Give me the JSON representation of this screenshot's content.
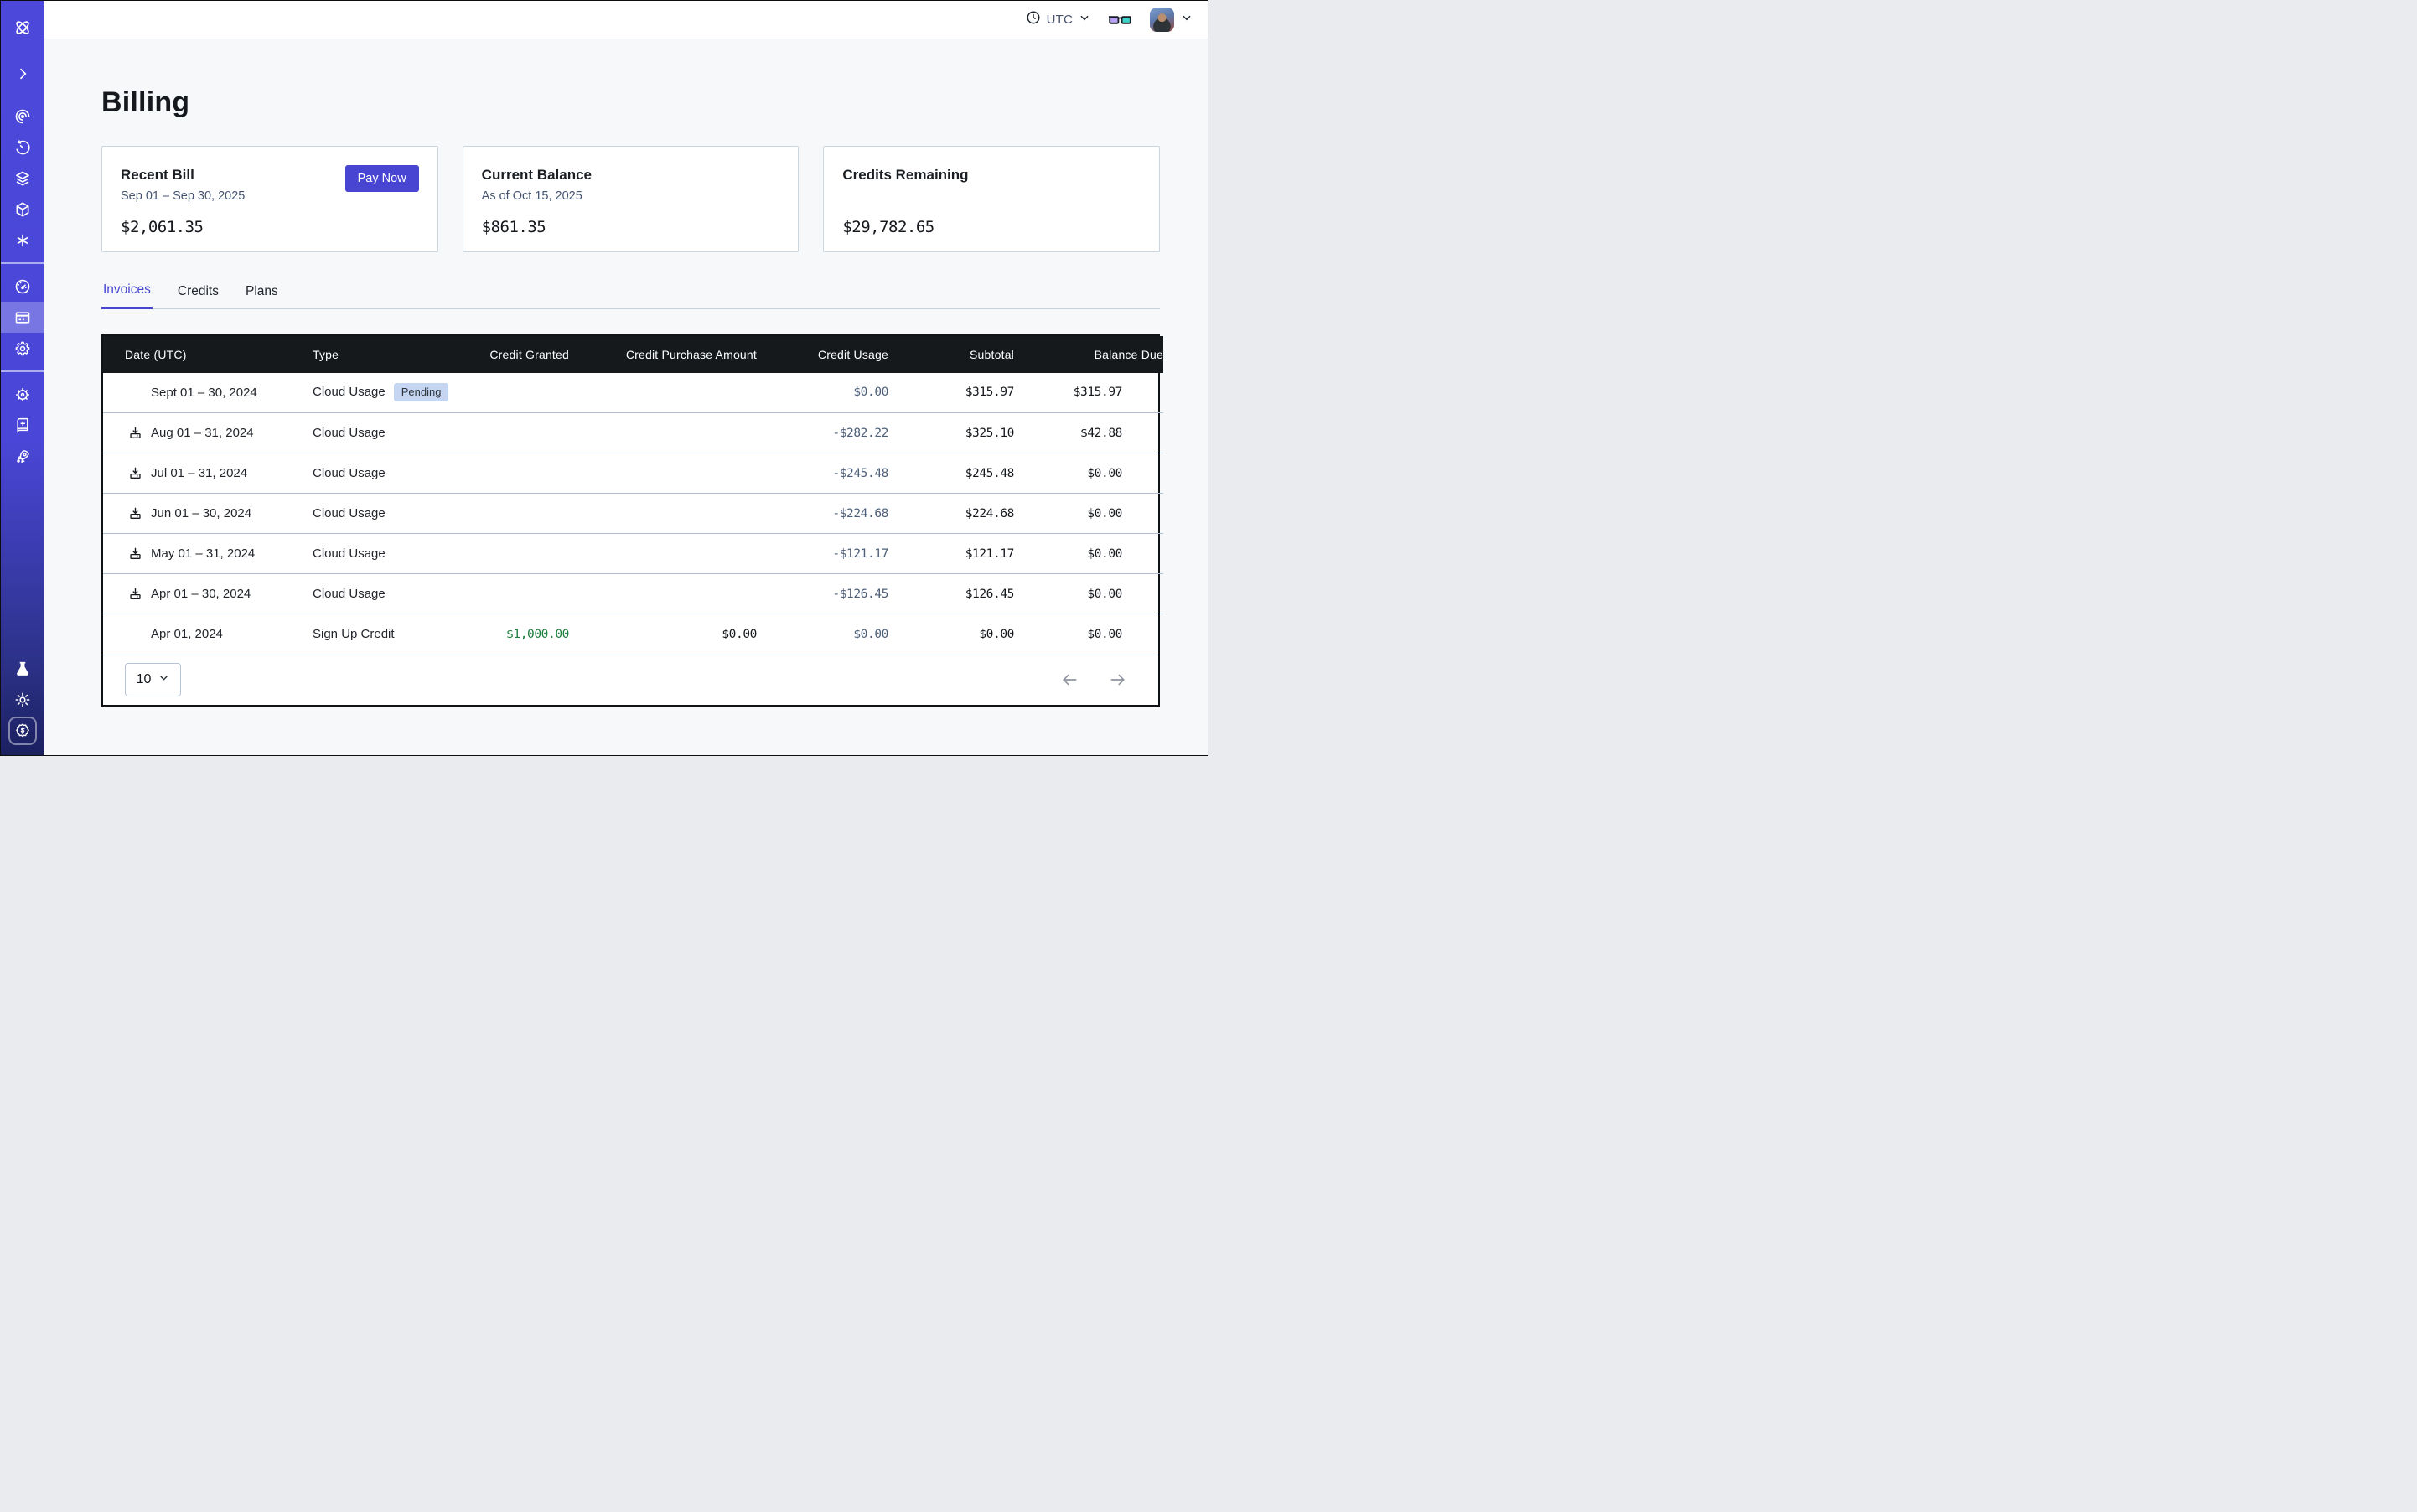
{
  "page": {
    "title": "Billing"
  },
  "topbar": {
    "timezone_label": "UTC",
    "icons": [
      "clock-icon",
      "chevron-down-icon",
      "glasses-icon",
      "avatar",
      "chevron-down-icon"
    ]
  },
  "sidebar": {
    "icons": [
      "orbit-logo-icon",
      "chevron-right-icon",
      "spiral-eye-icon",
      "retry-clock-icon",
      "layers-icon",
      "cube-icon",
      "asterisk-icon",
      "gauge-icon",
      "credit-card-icon",
      "gear-icon",
      "ship-wheel-icon",
      "book-sparkle-icon",
      "rocket-icon",
      "flask-icon",
      "sun-icon",
      "dollar-seal-icon"
    ],
    "active_icon": "credit-card-icon"
  },
  "cards": {
    "recent_bill": {
      "title": "Recent Bill",
      "subtitle": "Sep 01 – Sep 30, 2025",
      "amount": "$2,061.35",
      "action_label": "Pay Now"
    },
    "current_balance": {
      "title": "Current Balance",
      "subtitle": "As of Oct 15, 2025",
      "amount": "$861.35"
    },
    "credits_remaining": {
      "title": "Credits Remaining",
      "amount": "$29,782.65"
    }
  },
  "tabs": [
    {
      "label": "Invoices",
      "active": true
    },
    {
      "label": "Credits",
      "active": false
    },
    {
      "label": "Plans",
      "active": false
    }
  ],
  "invoices_table": {
    "columns": [
      "Date (UTC)",
      "Type",
      "Credit Granted",
      "Credit Purchase Amount",
      "Credit Usage",
      "Subtotal",
      "Balance Due"
    ],
    "rows": [
      {
        "date": "Sept 01 – 30, 2024",
        "downloadable": false,
        "type": "Cloud Usage",
        "badge": "Pending",
        "credit_granted": "",
        "credit_purchase_amount": "",
        "credit_usage": "$0.00",
        "subtotal": "$315.97",
        "balance_due": "$315.97"
      },
      {
        "date": "Aug 01 – 31, 2024",
        "downloadable": true,
        "type": "Cloud Usage",
        "badge": "",
        "credit_granted": "",
        "credit_purchase_amount": "",
        "credit_usage": "-$282.22",
        "subtotal": "$325.10",
        "balance_due": "$42.88"
      },
      {
        "date": "Jul 01 – 31, 2024",
        "downloadable": true,
        "type": "Cloud Usage",
        "badge": "",
        "credit_granted": "",
        "credit_purchase_amount": "",
        "credit_usage": "-$245.48",
        "subtotal": "$245.48",
        "balance_due": "$0.00"
      },
      {
        "date": "Jun 01 – 30, 2024",
        "downloadable": true,
        "type": "Cloud Usage",
        "badge": "",
        "credit_granted": "",
        "credit_purchase_amount": "",
        "credit_usage": "-$224.68",
        "subtotal": "$224.68",
        "balance_due": "$0.00"
      },
      {
        "date": "May 01 – 31, 2024",
        "downloadable": true,
        "type": "Cloud Usage",
        "badge": "",
        "credit_granted": "",
        "credit_purchase_amount": "",
        "credit_usage": "-$121.17",
        "subtotal": "$121.17",
        "balance_due": "$0.00"
      },
      {
        "date": "Apr 01 – 30, 2024",
        "downloadable": true,
        "type": "Cloud Usage",
        "badge": "",
        "credit_granted": "",
        "credit_purchase_amount": "",
        "credit_usage": "-$126.45",
        "subtotal": "$126.45",
        "balance_due": "$0.00"
      },
      {
        "date": "Apr 01, 2024",
        "downloadable": false,
        "type": "Sign Up Credit",
        "badge": "",
        "credit_granted": "$1,000.00",
        "credit_purchase_amount": "$0.00",
        "credit_usage": "$0.00",
        "subtotal": "$0.00",
        "balance_due": "$0.00"
      }
    ],
    "pagination": {
      "page_size": "10"
    }
  },
  "colors": {
    "accent": "#4845d2",
    "table_header_bg": "#16191c",
    "credit_usage_text": "#4e6079",
    "credit_granted_green": "#1b7e3c",
    "pending_badge_bg": "#c5d6f2",
    "glasses_left_lens": "#b7a2f5",
    "glasses_right_lens": "#3ed2c6"
  }
}
